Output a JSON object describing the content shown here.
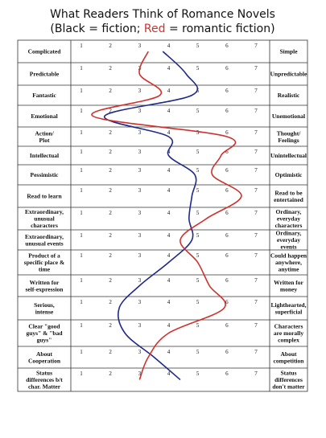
{
  "chart_data": {
    "type": "profile",
    "title": "What Readers Think of Romance Novels",
    "subtitle_parts": [
      "(Black = fiction; ",
      "Red",
      " = romantic fiction)"
    ],
    "subtitle_colors": [
      "#111111",
      "#d0312d",
      "#111111"
    ],
    "rows": [
      {
        "left": [
          "Complicated"
        ],
        "right": [
          "Simple"
        ]
      },
      {
        "left": [
          "Predictable"
        ],
        "right": [
          "Unpredictable"
        ]
      },
      {
        "left": [
          "Fantastic"
        ],
        "right": [
          "Realistic"
        ]
      },
      {
        "left": [
          "Emotional"
        ],
        "right": [
          "Unemotional"
        ]
      },
      {
        "left": [
          "Action/",
          "Plot"
        ],
        "right": [
          "Thought/",
          "Feelings"
        ]
      },
      {
        "left": [
          "Intellectual"
        ],
        "right": [
          "Unintellectual"
        ]
      },
      {
        "left": [
          "Pessimistic"
        ],
        "right": [
          "Optimistic"
        ]
      },
      {
        "left": [
          "Read to learn"
        ],
        "right": [
          "Read to be",
          "entertained"
        ]
      },
      {
        "left": [
          "Extraordinary,",
          "unusual",
          "characters"
        ],
        "right": [
          "Ordinary,",
          "everyday",
          "characters"
        ]
      },
      {
        "left": [
          "Extraordinary,",
          "unusual events"
        ],
        "right": [
          "Ordinary,",
          "everyday",
          "events"
        ]
      },
      {
        "left": [
          "Product of a",
          "specific place &",
          "time"
        ],
        "right": [
          "Could happen",
          "anywhere,",
          "anytime"
        ]
      },
      {
        "left": [
          "Written for",
          "self-expression"
        ],
        "right": [
          "Written for",
          "money"
        ]
      },
      {
        "left": [
          "Serious,",
          "intense"
        ],
        "right": [
          "Lighthearted,",
          "superficial"
        ]
      },
      {
        "left": [
          "Clear \"good",
          "guys\" & \"bad",
          "guys\""
        ],
        "right": [
          "Characters",
          "are morally",
          "complex"
        ]
      },
      {
        "left": [
          "About",
          "Cooperation"
        ],
        "right": [
          "About",
          "competition"
        ]
      },
      {
        "left": [
          "Status",
          "differences b/t",
          "char. Matter"
        ],
        "right": [
          "Status",
          "differences",
          "don't matter"
        ]
      }
    ],
    "xlim": [
      1,
      7
    ],
    "xticks": [
      1,
      2,
      3,
      4,
      5,
      6,
      7
    ],
    "series": [
      {
        "color": "#1f2a8a",
        "values": [
          3.8,
          4.6,
          4.8,
          1.8,
          4.0,
          4.0,
          4.9,
          4.8,
          4.7,
          4.8,
          4.0,
          3.0,
          2.3,
          2.5,
          3.5,
          4.4
        ]
      },
      {
        "color": "#d0312d",
        "values": [
          3.3,
          3.0,
          3.7,
          1.4,
          6.0,
          5.8,
          5.5,
          6.5,
          5.3,
          4.4,
          5.0,
          5.4,
          5.9,
          4.0,
          3.3,
          3.0
        ]
      }
    ]
  }
}
